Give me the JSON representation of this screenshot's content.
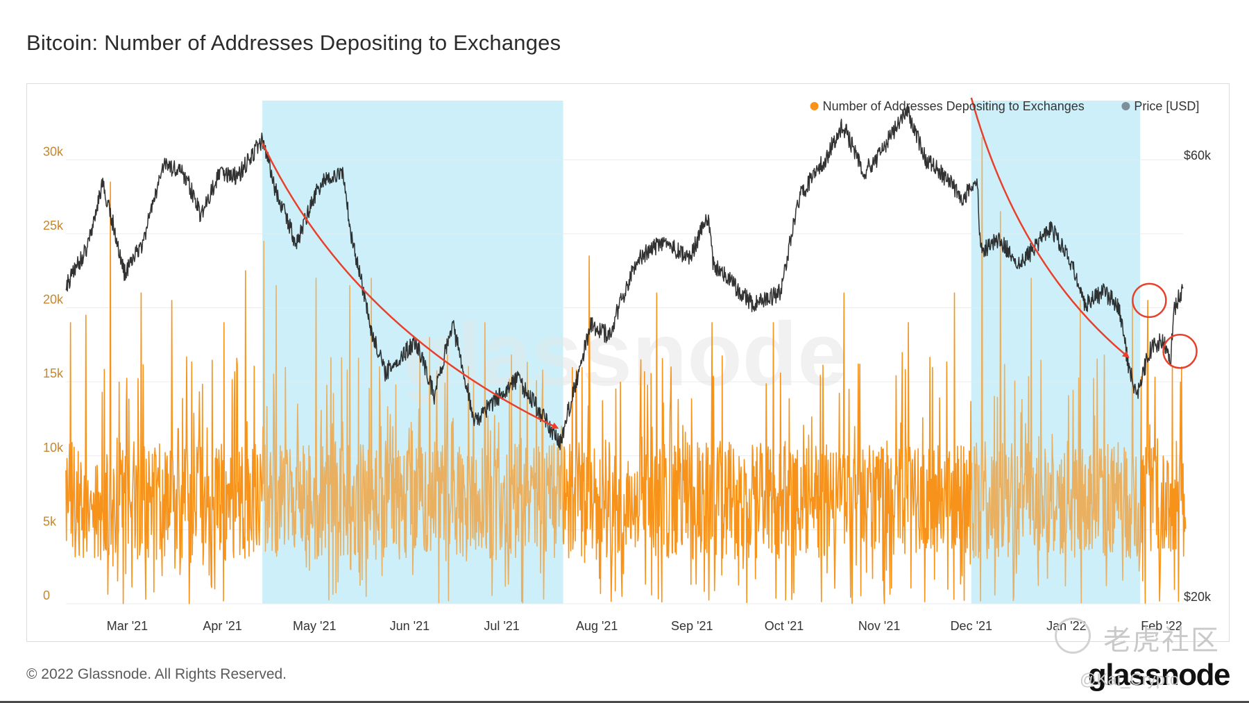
{
  "title": "Bitcoin: Number of Addresses Depositing to Exchanges",
  "footer": "© 2022 Glassnode. All Rights Reserved.",
  "logo": "glassnode",
  "chart_watermark": "glassnode",
  "overlay_watermark": {
    "text": "老虎社区",
    "handle": "@Kai_Crypto"
  },
  "colors": {
    "addresses": "#f7931a",
    "price": "#1c1c1c",
    "highlight": "#cdeffa",
    "annotation": "#e8402a",
    "left_axis_text": "#c7862d",
    "right_axis_text": "#333333"
  },
  "legend": [
    {
      "label": "Number of Addresses Depositing to Exchanges",
      "color": "#f7931a"
    },
    {
      "label": "Price [USD]",
      "color": "#7d8f99"
    }
  ],
  "chart_data": {
    "type": "line",
    "title": "Bitcoin: Number of Addresses Depositing to Exchanges",
    "x_ticks": [
      "Mar '21",
      "Apr '21",
      "May '21",
      "Jun '21",
      "Jul '21",
      "Aug '21",
      "Sep '21",
      "Oct '21",
      "Nov '21",
      "Dec '21",
      "Jan '22",
      "Feb '22"
    ],
    "x_range": [
      "2021-02-09",
      "2022-02-08"
    ],
    "y_left": {
      "ticks": [
        "0",
        "5k",
        "10k",
        "15k",
        "20k",
        "25k",
        "30k"
      ],
      "range": [
        0,
        34000
      ]
    },
    "y_right": {
      "ticks": [
        "$20k",
        "$60k"
      ],
      "scale": "log",
      "range": [
        20000,
        70000
      ]
    },
    "grid": true,
    "legend_position": "top-right",
    "highlight_ranges": [
      {
        "from": "2021-04-14",
        "to": "2021-07-21"
      },
      {
        "from": "2021-12-01",
        "to": "2022-01-25"
      }
    ],
    "series": [
      {
        "name": "Number of Addresses Depositing to Exchanges",
        "axis": "left",
        "style": "dense-spiky",
        "typical_range": [
          3000,
          11000
        ],
        "peaks": [
          {
            "x": "2021-02-10",
            "y": 19000
          },
          {
            "x": "2021-02-15",
            "y": 19500
          },
          {
            "x": "2021-02-23",
            "y": 28500
          },
          {
            "x": "2021-03-05",
            "y": 21000
          },
          {
            "x": "2021-03-15",
            "y": 20500
          },
          {
            "x": "2021-04-01",
            "y": 19000
          },
          {
            "x": "2021-04-08",
            "y": 22500
          },
          {
            "x": "2021-04-14",
            "y": 24500
          },
          {
            "x": "2021-04-18",
            "y": 21500
          },
          {
            "x": "2021-05-01",
            "y": 22000
          },
          {
            "x": "2021-05-12",
            "y": 21500
          },
          {
            "x": "2021-05-19",
            "y": 22000
          },
          {
            "x": "2021-06-07",
            "y": 18000
          },
          {
            "x": "2021-06-25",
            "y": 19000
          },
          {
            "x": "2021-07-20",
            "y": 12000
          },
          {
            "x": "2021-07-29",
            "y": 23500
          },
          {
            "x": "2021-08-20",
            "y": 21000
          },
          {
            "x": "2021-09-07",
            "y": 19000
          },
          {
            "x": "2021-09-27",
            "y": 19000
          },
          {
            "x": "2021-10-20",
            "y": 21000
          },
          {
            "x": "2021-11-10",
            "y": 19000
          },
          {
            "x": "2021-11-25",
            "y": 21000
          },
          {
            "x": "2021-12-04",
            "y": 31500
          },
          {
            "x": "2021-12-10",
            "y": 26500
          },
          {
            "x": "2021-12-20",
            "y": 22000
          },
          {
            "x": "2022-01-05",
            "y": 20500
          },
          {
            "x": "2022-01-22",
            "y": 20500
          },
          {
            "x": "2022-01-27",
            "y": 20500
          },
          {
            "x": "2022-02-04",
            "y": 16000
          },
          {
            "x": "2022-02-07",
            "y": 16000
          }
        ]
      },
      {
        "name": "Price [USD]",
        "axis": "right",
        "points": [
          {
            "x": "2021-02-09",
            "y": 44000
          },
          {
            "x": "2021-02-16",
            "y": 48500
          },
          {
            "x": "2021-02-21",
            "y": 57000
          },
          {
            "x": "2021-02-28",
            "y": 45500
          },
          {
            "x": "2021-03-06",
            "y": 49000
          },
          {
            "x": "2021-03-13",
            "y": 60000
          },
          {
            "x": "2021-03-20",
            "y": 58000
          },
          {
            "x": "2021-03-25",
            "y": 52500
          },
          {
            "x": "2021-03-31",
            "y": 58500
          },
          {
            "x": "2021-04-06",
            "y": 58000
          },
          {
            "x": "2021-04-14",
            "y": 63500
          },
          {
            "x": "2021-04-18",
            "y": 56500
          },
          {
            "x": "2021-04-25",
            "y": 49000
          },
          {
            "x": "2021-05-03",
            "y": 57000
          },
          {
            "x": "2021-05-10",
            "y": 58500
          },
          {
            "x": "2021-05-13",
            "y": 50000
          },
          {
            "x": "2021-05-19",
            "y": 40000
          },
          {
            "x": "2021-05-24",
            "y": 35500
          },
          {
            "x": "2021-06-03",
            "y": 38500
          },
          {
            "x": "2021-06-09",
            "y": 33500
          },
          {
            "x": "2021-06-15",
            "y": 40000
          },
          {
            "x": "2021-06-22",
            "y": 31500
          },
          {
            "x": "2021-07-06",
            "y": 35000
          },
          {
            "x": "2021-07-20",
            "y": 29800
          },
          {
            "x": "2021-07-25",
            "y": 34500
          },
          {
            "x": "2021-07-30",
            "y": 40000
          },
          {
            "x": "2021-08-05",
            "y": 39000
          },
          {
            "x": "2021-08-14",
            "y": 47000
          },
          {
            "x": "2021-08-23",
            "y": 49500
          },
          {
            "x": "2021-08-31",
            "y": 47000
          },
          {
            "x": "2021-09-06",
            "y": 52500
          },
          {
            "x": "2021-09-08",
            "y": 46500
          },
          {
            "x": "2021-09-21",
            "y": 42000
          },
          {
            "x": "2021-09-30",
            "y": 43500
          },
          {
            "x": "2021-10-06",
            "y": 55000
          },
          {
            "x": "2021-10-15",
            "y": 61000
          },
          {
            "x": "2021-10-20",
            "y": 66000
          },
          {
            "x": "2021-10-27",
            "y": 58500
          },
          {
            "x": "2021-11-01",
            "y": 61000
          },
          {
            "x": "2021-11-10",
            "y": 68500
          },
          {
            "x": "2021-11-16",
            "y": 60500
          },
          {
            "x": "2021-11-21",
            "y": 58500
          },
          {
            "x": "2021-11-28",
            "y": 55000
          },
          {
            "x": "2021-12-03",
            "y": 57000
          },
          {
            "x": "2021-12-04",
            "y": 48000
          },
          {
            "x": "2021-12-10",
            "y": 49500
          },
          {
            "x": "2021-12-17",
            "y": 46500
          },
          {
            "x": "2021-12-27",
            "y": 51000
          },
          {
            "x": "2022-01-03",
            "y": 46500
          },
          {
            "x": "2022-01-07",
            "y": 42000
          },
          {
            "x": "2022-01-13",
            "y": 43500
          },
          {
            "x": "2022-01-18",
            "y": 42000
          },
          {
            "x": "2022-01-21",
            "y": 36500
          },
          {
            "x": "2022-01-24",
            "y": 33500
          },
          {
            "x": "2022-01-28",
            "y": 37500
          },
          {
            "x": "2022-02-01",
            "y": 38500
          },
          {
            "x": "2022-02-04",
            "y": 37000
          },
          {
            "x": "2022-02-05",
            "y": 41500
          },
          {
            "x": "2022-02-08",
            "y": 44000
          }
        ]
      }
    ],
    "annotations": [
      {
        "type": "arrow",
        "from": {
          "x": "2021-04-14",
          "y_price": 63000
        },
        "to": {
          "x": "2021-07-19",
          "y_price": 31000
        }
      },
      {
        "type": "arrow",
        "from": {
          "x": "2021-12-01",
          "y_price": 70500
        },
        "to": {
          "x": "2022-01-21",
          "y_price": 37000
        }
      },
      {
        "type": "circle",
        "x": "2022-01-28",
        "y_addresses": 20500
      },
      {
        "type": "circle",
        "x": "2022-02-07",
        "y_price": 37500
      }
    ]
  }
}
